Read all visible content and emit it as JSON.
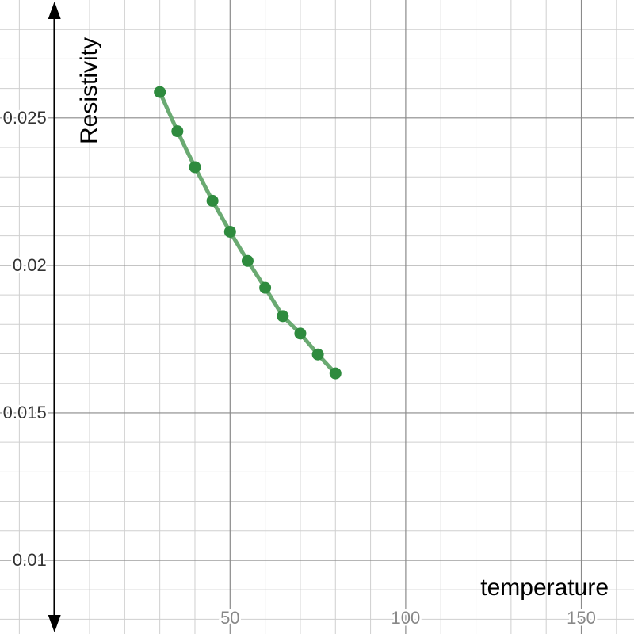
{
  "chart_data": {
    "type": "line",
    "title": "",
    "xlabel": "temperature",
    "ylabel": "Resistivity",
    "xlim": [
      -15.5,
      165
    ],
    "ylim": [
      0.0075,
      0.029
    ],
    "x_ticks": [
      50,
      100,
      150
    ],
    "x_tick_labels": [
      "50",
      "100",
      "150"
    ],
    "y_ticks": [
      0.01,
      0.015,
      0.02,
      0.025
    ],
    "y_tick_labels": [
      "0.01",
      "0.015",
      "0.02",
      "0.025"
    ],
    "grid": true,
    "series": [
      {
        "color": "#2e8b3e",
        "line_color": "#6aaa72",
        "x": [
          30,
          35,
          40,
          45,
          50,
          55,
          60,
          65,
          70,
          75,
          80
        ],
        "y": [
          0.02588,
          0.02455,
          0.02333,
          0.02219,
          0.02114,
          0.02015,
          0.01924,
          0.01828,
          0.01769,
          0.01698,
          0.01634
        ]
      }
    ]
  }
}
